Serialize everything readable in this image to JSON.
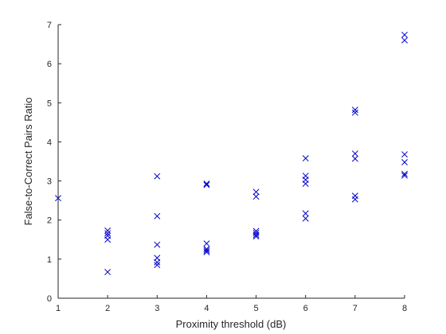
{
  "chart_data": {
    "type": "scatter",
    "xlabel": "Proximity threshold (dB)",
    "ylabel": "False-to-Correct Pairs Ratio",
    "xlim": [
      1,
      8
    ],
    "ylim": [
      0,
      7
    ],
    "xticks": [
      "1",
      "2",
      "3",
      "4",
      "5",
      "6",
      "7",
      "8"
    ],
    "yticks": [
      "0",
      "1",
      "2",
      "3",
      "4",
      "5",
      "6",
      "7"
    ],
    "marker": "x",
    "color": "#0000cc",
    "grid": false,
    "points": [
      {
        "x": 1,
        "y": 2.56
      },
      {
        "x": 2,
        "y": 1.73
      },
      {
        "x": 2,
        "y": 1.66
      },
      {
        "x": 2,
        "y": 1.6
      },
      {
        "x": 2,
        "y": 1.5
      },
      {
        "x": 2,
        "y": 0.67
      },
      {
        "x": 3,
        "y": 3.12
      },
      {
        "x": 3,
        "y": 2.1
      },
      {
        "x": 3,
        "y": 1.37
      },
      {
        "x": 3,
        "y": 1.03
      },
      {
        "x": 3,
        "y": 0.92
      },
      {
        "x": 3,
        "y": 0.85
      },
      {
        "x": 4,
        "y": 2.93
      },
      {
        "x": 4,
        "y": 2.9
      },
      {
        "x": 4,
        "y": 1.4
      },
      {
        "x": 4,
        "y": 1.26
      },
      {
        "x": 4,
        "y": 1.22
      },
      {
        "x": 4,
        "y": 1.18
      },
      {
        "x": 5,
        "y": 2.72
      },
      {
        "x": 5,
        "y": 2.6
      },
      {
        "x": 5,
        "y": 1.72
      },
      {
        "x": 5,
        "y": 1.67
      },
      {
        "x": 5,
        "y": 1.62
      },
      {
        "x": 5,
        "y": 1.58
      },
      {
        "x": 6,
        "y": 3.58
      },
      {
        "x": 6,
        "y": 3.13
      },
      {
        "x": 6,
        "y": 3.03
      },
      {
        "x": 6,
        "y": 2.93
      },
      {
        "x": 6,
        "y": 2.17
      },
      {
        "x": 6,
        "y": 2.04
      },
      {
        "x": 7,
        "y": 4.82
      },
      {
        "x": 7,
        "y": 4.75
      },
      {
        "x": 7,
        "y": 3.7
      },
      {
        "x": 7,
        "y": 3.57
      },
      {
        "x": 7,
        "y": 2.62
      },
      {
        "x": 7,
        "y": 2.53
      },
      {
        "x": 8,
        "y": 6.74
      },
      {
        "x": 8,
        "y": 6.6
      },
      {
        "x": 8,
        "y": 3.68
      },
      {
        "x": 8,
        "y": 3.48
      },
      {
        "x": 8,
        "y": 3.18
      },
      {
        "x": 8,
        "y": 3.14
      }
    ]
  }
}
